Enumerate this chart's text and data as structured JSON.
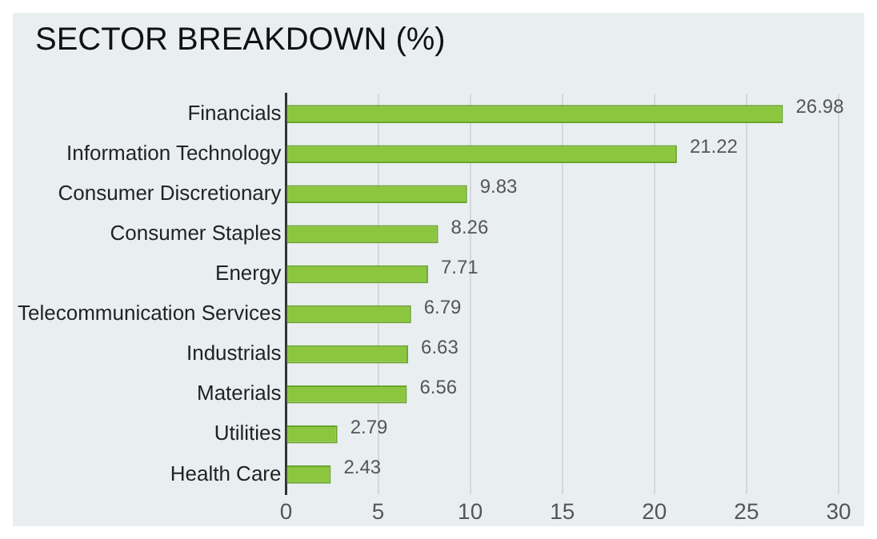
{
  "chart_data": {
    "type": "bar",
    "title": "SECTOR BREAKDOWN (%)",
    "orientation": "horizontal",
    "categories": [
      "Financials",
      "Information Technology",
      "Consumer Discretionary",
      "Consumer Staples",
      "Energy",
      "Telecommunication Services",
      "Industrials",
      "Materials",
      "Utilities",
      "Health Care"
    ],
    "values": [
      26.98,
      21.22,
      9.83,
      8.26,
      7.71,
      6.79,
      6.63,
      6.56,
      2.79,
      2.43
    ],
    "color": "#8cc63f",
    "xlim": [
      0,
      30
    ],
    "xticks": [
      0,
      5,
      10,
      15,
      20,
      25,
      30
    ],
    "grid": "x",
    "data_labels": true
  }
}
